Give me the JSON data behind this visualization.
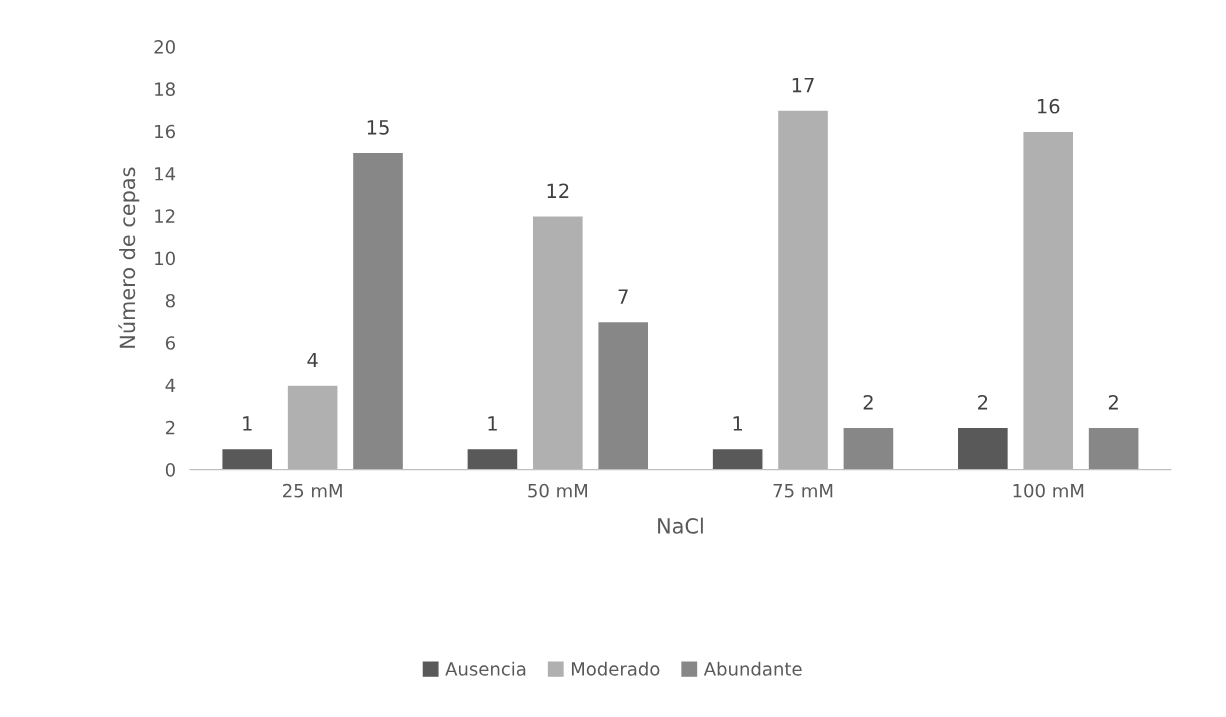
{
  "chart_data": {
    "type": "bar",
    "xlabel": "NaCl",
    "ylabel": "Número de cepas",
    "categories": [
      "25 mM",
      "50 mM",
      "75 mM",
      "100 mM"
    ],
    "series": [
      {
        "name": "Ausencia",
        "color": "#595959",
        "values": [
          1,
          1,
          1,
          2
        ]
      },
      {
        "name": "Moderado",
        "color": "#b0b0b0",
        "values": [
          4,
          12,
          17,
          16
        ]
      },
      {
        "name": "Abundante",
        "color": "#878787",
        "values": [
          15,
          7,
          2,
          2
        ]
      }
    ],
    "ylim": [
      0,
      20
    ],
    "yticks": [
      0,
      2,
      4,
      6,
      8,
      10,
      12,
      14,
      16,
      18,
      20
    ],
    "grid": false,
    "legend": "bottom",
    "data_labels": true
  }
}
